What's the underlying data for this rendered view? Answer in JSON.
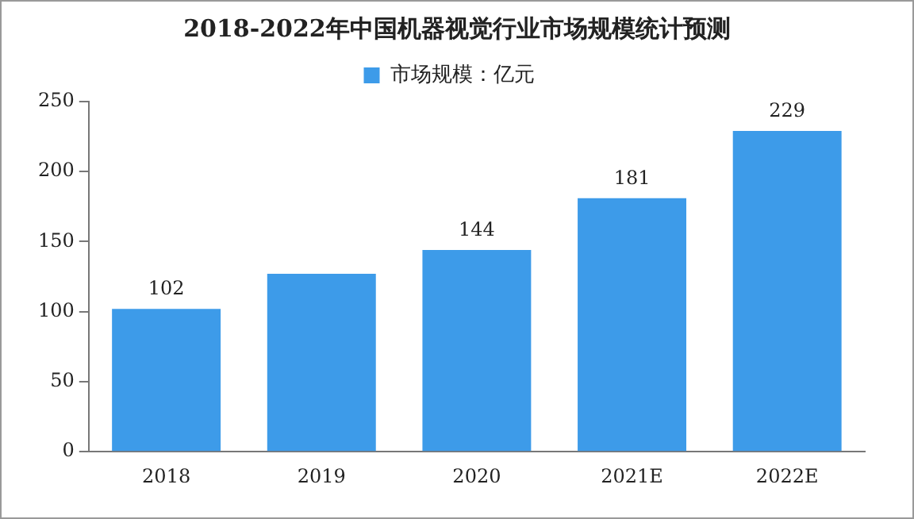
{
  "chart_data": {
    "type": "bar",
    "title": "2018-2022年中国机器视觉行业市场规模统计预测",
    "categories": [
      "2018",
      "2019",
      "2020",
      "2021E",
      "2022E"
    ],
    "series": [
      {
        "name": "市场规模：亿元",
        "color": "#3d9be9",
        "values": [
          102,
          127,
          144,
          181,
          229
        ],
        "value_labels": [
          "102",
          null,
          "144",
          "181",
          "229"
        ]
      }
    ],
    "ylim": [
      0,
      250
    ],
    "yticks": [
      0,
      50,
      100,
      150,
      200,
      250
    ],
    "grid": false,
    "legend": "top"
  }
}
